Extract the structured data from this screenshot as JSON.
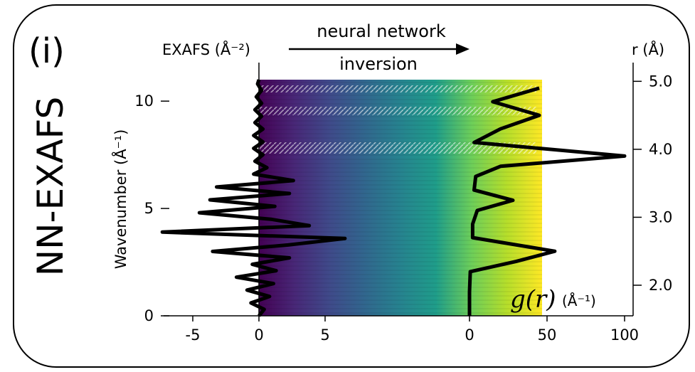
{
  "panel": {
    "label": "(i)",
    "side_title": "NN-EXAFS"
  },
  "arrow": {
    "top_text": "neural network",
    "bottom_text": "inversion"
  },
  "chart_data": [
    {
      "type": "line",
      "name": "exafs-panel",
      "xlabel": "EXAFS  (Å⁻²)",
      "ylabel": "Wavenumber (Å⁻¹)",
      "xlim": [
        -7,
        5
      ],
      "ylim": [
        0,
        11
      ],
      "xticks": [
        -5,
        0,
        5
      ],
      "xtick_labels": [
        "-5",
        "0",
        "5"
      ],
      "yticks": [
        0,
        5,
        10
      ],
      "ytick_labels": [
        "0",
        "5",
        "10"
      ],
      "grid": false,
      "series": [
        {
          "values_k": [
            0.0,
            0.3,
            0.6,
            0.9,
            1.2,
            1.5,
            1.8,
            2.1,
            2.4,
            2.7,
            3.0,
            3.3,
            3.6,
            3.9,
            4.2,
            4.5,
            4.8,
            5.1,
            5.4,
            5.7,
            6.0,
            6.3,
            6.6,
            6.9,
            7.2,
            7.5,
            7.8,
            8.1,
            8.4,
            8.7,
            9.0,
            9.3,
            9.6,
            9.9,
            10.2,
            10.5,
            10.8,
            11.0
          ],
          "values_chi": [
            0.0,
            0.4,
            -0.6,
            0.8,
            -0.9,
            1.1,
            -1.7,
            1.3,
            -0.5,
            2.3,
            -3.5,
            2.2,
            6.5,
            -7.3,
            3.8,
            0.9,
            -4.5,
            1.2,
            -3.7,
            2.3,
            -3.2,
            2.6,
            -0.4,
            0.6,
            -0.3,
            0.3,
            -0.4,
            0.3,
            -0.4,
            0.3,
            -0.3,
            0.2,
            -0.3,
            0.2,
            -0.2,
            0.2,
            -0.1,
            0.0
          ]
        }
      ]
    },
    {
      "type": "line",
      "name": "g-of-r-panel",
      "xlabel": "(Å⁻¹)",
      "xlabel_italic": "g(r)",
      "ylabel": "r (Å)",
      "xlim": [
        -2,
        103
      ],
      "ylim": [
        1.55,
        5.15
      ],
      "xticks": [
        0,
        50,
        100
      ],
      "xtick_labels": [
        "0",
        "50",
        "100"
      ],
      "yticks": [
        2.0,
        3.0,
        4.0,
        5.0
      ],
      "ytick_labels": [
        "2.0",
        "3.0",
        "4.0",
        "5.0"
      ],
      "grid": false,
      "series": [
        {
          "r": [
            1.55,
            1.9,
            2.2,
            2.35,
            2.5,
            2.7,
            2.9,
            3.1,
            3.25,
            3.4,
            3.6,
            3.75,
            3.9,
            4.1,
            4.3,
            4.5,
            4.7,
            4.9
          ],
          "g": [
            0,
            0,
            0.5,
            30,
            55,
            2,
            2,
            5,
            28,
            3,
            4,
            20,
            100,
            3,
            20,
            45,
            15,
            45
          ]
        }
      ]
    }
  ],
  "colors": {
    "viridis": [
      "#440154",
      "#482777",
      "#3f4a8a",
      "#31678e",
      "#26838f",
      "#1f9d8a",
      "#6cce5a",
      "#b6de2b",
      "#fee825"
    ],
    "curve": "#000000",
    "frame": "#000000"
  }
}
